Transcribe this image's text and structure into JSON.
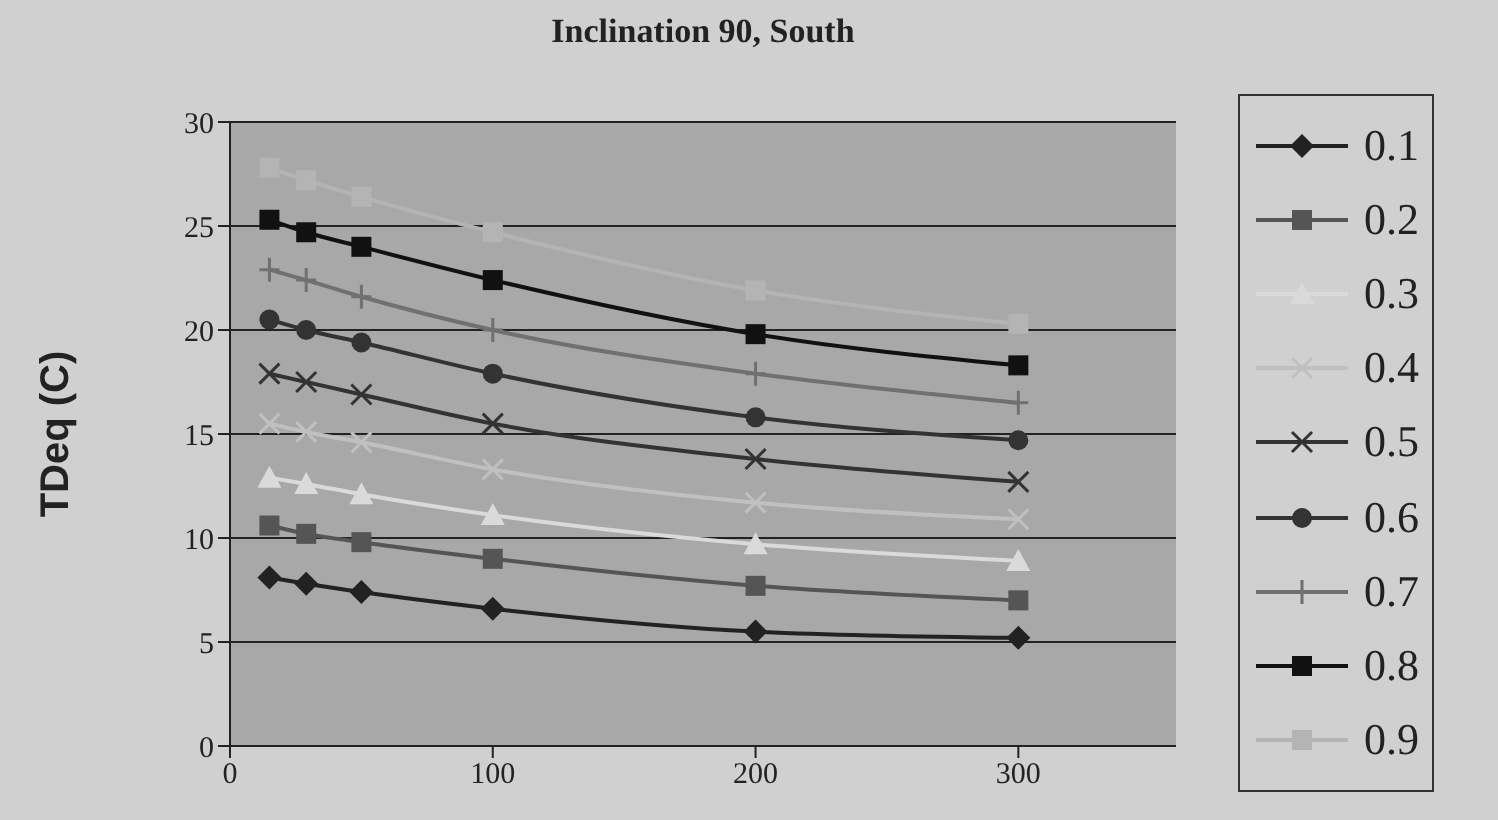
{
  "chart_data": {
    "type": "line",
    "title": "Inclination 90, South",
    "ylabel": "TDeq (C)",
    "x": [
      15,
      29,
      50,
      100,
      200,
      300
    ],
    "xlim": [
      0,
      360
    ],
    "xticks": [
      0,
      100,
      200,
      300
    ],
    "ylim": [
      0,
      30
    ],
    "yticks": [
      0,
      5,
      10,
      15,
      20,
      25,
      30
    ],
    "grid": "y",
    "legend": "right",
    "line_style": "solid",
    "series": [
      {
        "name": "0.1",
        "color": "#222222",
        "marker": "diamond",
        "values": [
          8.1,
          7.8,
          7.4,
          6.6,
          5.5,
          5.2
        ]
      },
      {
        "name": "0.2",
        "color": "#555555",
        "marker": "square",
        "values": [
          10.6,
          10.2,
          9.8,
          9.0,
          7.7,
          7.0
        ]
      },
      {
        "name": "0.3",
        "color": "#dadada",
        "marker": "triangle",
        "values": [
          12.9,
          12.6,
          12.1,
          11.1,
          9.7,
          8.9
        ]
      },
      {
        "name": "0.4",
        "color": "#c0c0c0",
        "marker": "cross",
        "values": [
          15.5,
          15.1,
          14.6,
          13.3,
          11.7,
          10.9
        ]
      },
      {
        "name": "0.5",
        "color": "#333333",
        "marker": "cross",
        "values": [
          17.9,
          17.5,
          16.9,
          15.5,
          13.8,
          12.7
        ]
      },
      {
        "name": "0.6",
        "color": "#333333",
        "marker": "circle",
        "values": [
          20.5,
          20.0,
          19.4,
          17.9,
          15.8,
          14.7
        ]
      },
      {
        "name": "0.7",
        "color": "#707070",
        "marker": "plus",
        "values": [
          22.9,
          22.4,
          21.6,
          20.0,
          17.9,
          16.5
        ]
      },
      {
        "name": "0.8",
        "color": "#111111",
        "marker": "square",
        "values": [
          25.3,
          24.7,
          24.0,
          22.4,
          19.8,
          18.3
        ]
      },
      {
        "name": "0.9",
        "color": "#b4b4b4",
        "marker": "square",
        "values": [
          27.8,
          27.2,
          26.4,
          24.7,
          21.9,
          20.3
        ]
      }
    ]
  }
}
